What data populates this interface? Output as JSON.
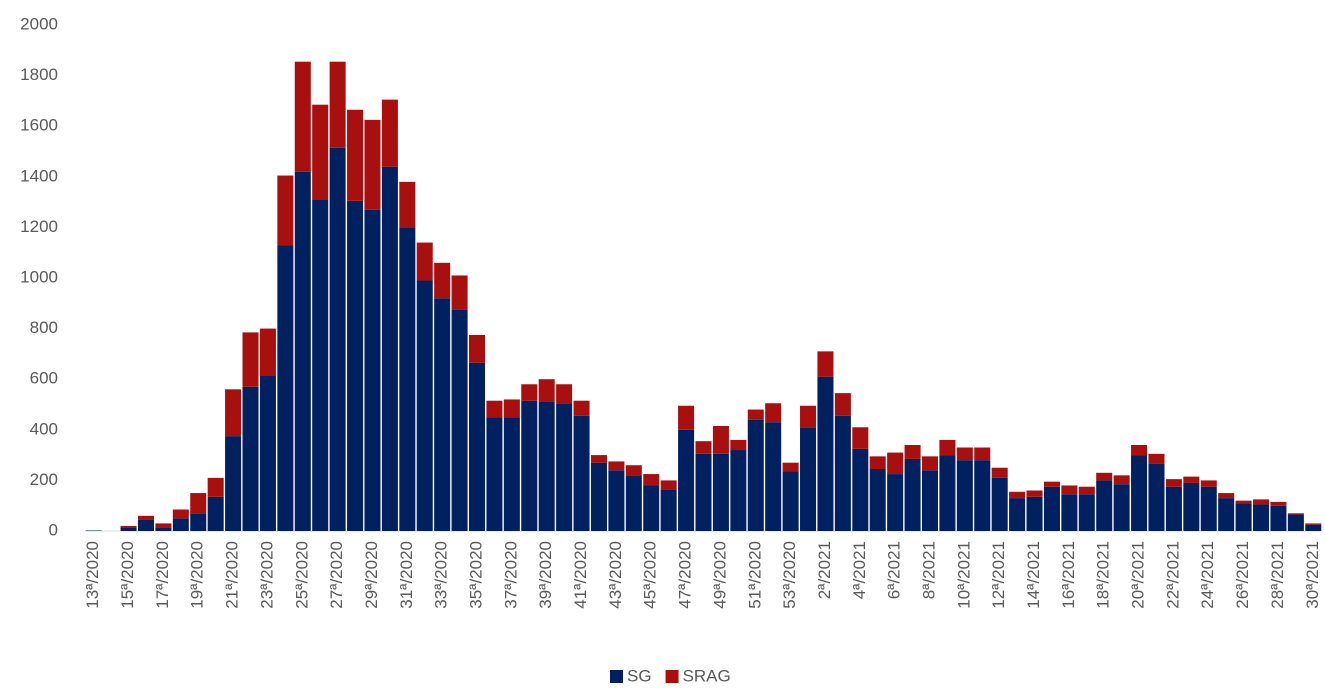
{
  "chart_data": {
    "type": "stacked-bar",
    "categories": [
      "13ª/2020",
      null,
      "15ª/2020",
      null,
      "17ª/2020",
      null,
      "19ª/2020",
      null,
      "21ª/2020",
      null,
      "23ª/2020",
      null,
      "25ª/2020",
      null,
      "27ª/2020",
      null,
      "29ª/2020",
      null,
      "31ª/2020",
      null,
      "33ª/2020",
      null,
      "35ª/2020",
      null,
      "37ª/2020",
      null,
      "39ª/2020",
      null,
      "41ª/2020",
      null,
      "43ª/2020",
      null,
      "45ª/2020",
      null,
      "47ª/2020",
      null,
      "49ª/2020",
      null,
      "51ª/2020",
      null,
      "53ª/2020",
      null,
      "2ª/2021",
      null,
      "4ª/2021",
      null,
      "6ª/2021",
      null,
      "8ª/2021",
      null,
      "10ª/2021",
      null,
      "12ª/2021",
      null,
      "14ª/2021",
      null,
      "16ª/2021",
      null,
      "18ª/2021",
      null,
      "20ª/2021",
      null,
      "22ª/2021",
      null,
      "24ª/2021",
      null,
      "26ª/2021",
      null,
      "28ª/2021",
      null,
      "30ª/2021"
    ],
    "series": [
      {
        "name": "SG",
        "color": "#002060",
        "values": [
          2,
          0,
          15,
          45,
          15,
          50,
          70,
          135,
          375,
          570,
          615,
          1130,
          1420,
          1310,
          1515,
          1305,
          1270,
          1440,
          1200,
          990,
          920,
          875,
          665,
          450,
          450,
          515,
          510,
          505,
          455,
          270,
          240,
          220,
          180,
          165,
          400,
          305,
          305,
          320,
          440,
          430,
          235,
          410,
          610,
          455,
          325,
          245,
          225,
          285,
          240,
          300,
          280,
          280,
          210,
          130,
          135,
          175,
          145,
          145,
          200,
          185,
          300,
          265,
          175,
          190,
          175,
          130,
          110,
          105,
          100,
          65,
          25
        ]
      },
      {
        "name": "SRAG",
        "color": "#a80f0f",
        "values": [
          0,
          0,
          5,
          15,
          15,
          35,
          80,
          75,
          185,
          215,
          185,
          275,
          435,
          375,
          340,
          360,
          355,
          265,
          180,
          150,
          140,
          135,
          110,
          65,
          70,
          65,
          90,
          75,
          60,
          30,
          35,
          40,
          45,
          35,
          95,
          50,
          110,
          40,
          40,
          75,
          35,
          85,
          100,
          90,
          85,
          50,
          85,
          55,
          55,
          60,
          50,
          50,
          40,
          25,
          25,
          20,
          35,
          30,
          30,
          35,
          40,
          40,
          30,
          25,
          25,
          20,
          10,
          20,
          15,
          5,
          5
        ]
      }
    ],
    "ylim": [
      0,
      2000
    ],
    "yticks": [
      0,
      200,
      400,
      600,
      800,
      1000,
      1200,
      1400,
      1600,
      1800,
      2000
    ],
    "grid": false,
    "legend": "bottom"
  }
}
